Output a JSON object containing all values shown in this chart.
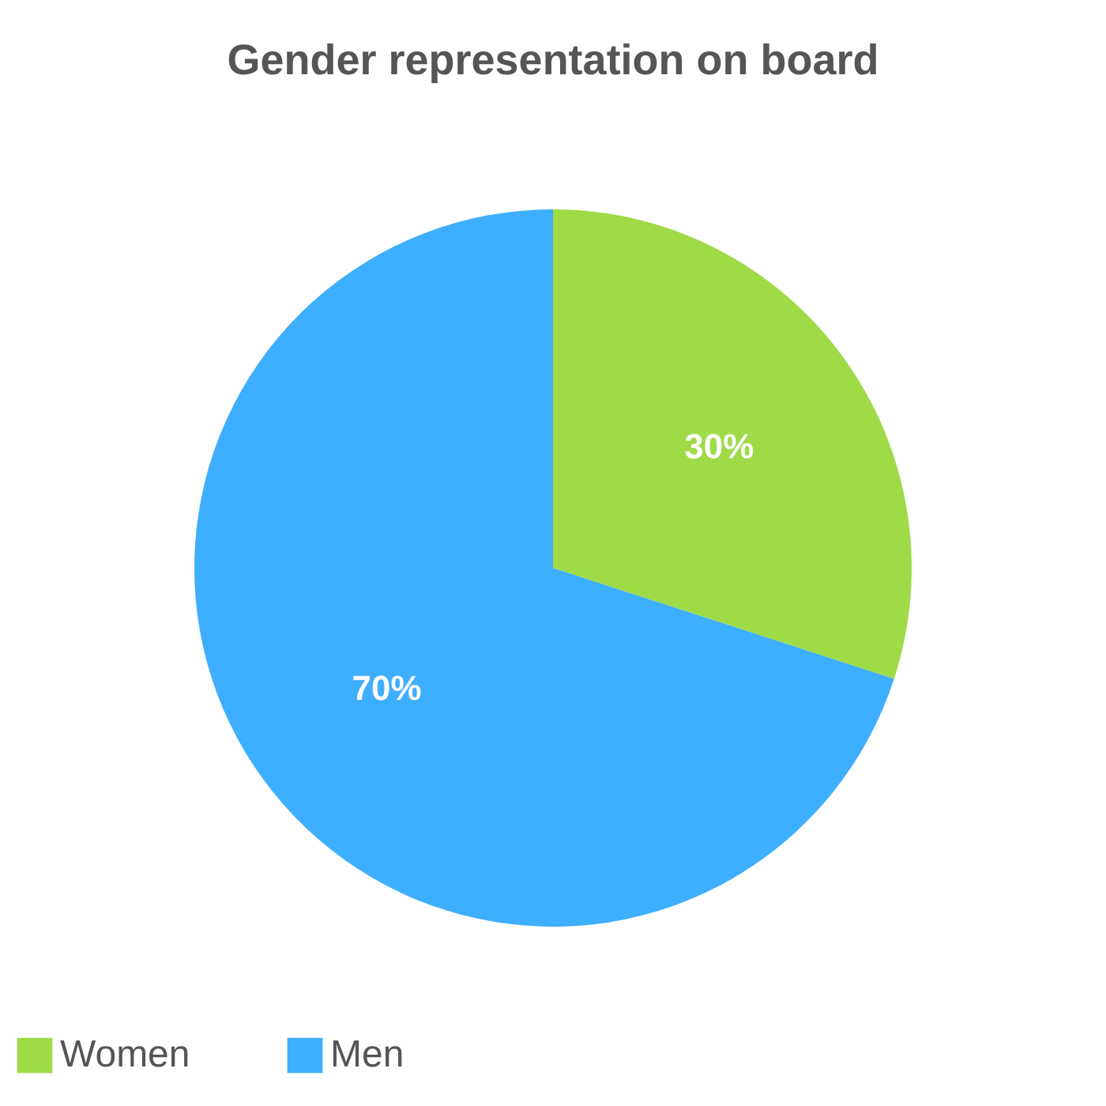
{
  "chart_data": {
    "type": "pie",
    "title": "Gender representation on board",
    "categories": [
      "Women",
      "Men"
    ],
    "values": [
      30,
      70
    ],
    "colors": [
      "#9edb47",
      "#3eaefe"
    ],
    "value_labels": [
      "30%",
      "70%"
    ],
    "legend": "bottom"
  }
}
